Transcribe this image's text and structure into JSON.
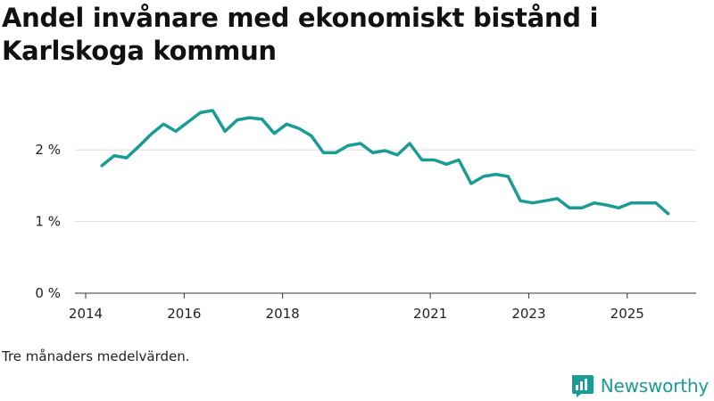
{
  "chart_data": {
    "type": "line",
    "title": "Andel invånare med ekonomiskt bistånd i Karlskoga kommun",
    "xlabel": "",
    "ylabel": "",
    "ylim": [
      0,
      2.6
    ],
    "yticks": [
      0,
      1,
      2
    ],
    "ytick_labels": [
      "0 %",
      "1 %",
      "2 %"
    ],
    "xlim": [
      2014.0,
      2026.4
    ],
    "xticks": [
      2014,
      2016,
      2018,
      2021,
      2023,
      2025
    ],
    "xtick_labels": [
      "2014",
      "2016",
      "2018",
      "2021",
      "2023",
      "2025"
    ],
    "grid": true,
    "series": [
      {
        "name": "Andel invånare med ekonomiskt bistånd",
        "color": "#1a9c95",
        "x": [
          2014.33,
          2014.58,
          2014.83,
          2015.08,
          2015.33,
          2015.58,
          2015.83,
          2016.08,
          2016.33,
          2016.58,
          2016.83,
          2017.08,
          2017.33,
          2017.58,
          2017.83,
          2018.08,
          2018.33,
          2018.58,
          2018.83,
          2019.08,
          2019.33,
          2019.58,
          2019.83,
          2020.08,
          2020.33,
          2020.58,
          2020.83,
          2021.08,
          2021.33,
          2021.58,
          2021.83,
          2022.08,
          2022.33,
          2022.58,
          2022.83,
          2023.08,
          2023.33,
          2023.58,
          2023.83,
          2024.08,
          2024.33,
          2024.58,
          2024.83,
          2025.08,
          2025.33,
          2025.58,
          2025.83
        ],
        "values": [
          1.78,
          1.92,
          1.89,
          2.05,
          2.22,
          2.36,
          2.26,
          2.39,
          2.52,
          2.55,
          2.26,
          2.42,
          2.45,
          2.43,
          2.23,
          2.36,
          2.3,
          2.2,
          1.96,
          1.96,
          2.06,
          2.09,
          1.96,
          1.99,
          1.93,
          2.09,
          1.86,
          1.86,
          1.8,
          1.86,
          1.53,
          1.63,
          1.66,
          1.63,
          1.29,
          1.26,
          1.29,
          1.32,
          1.19,
          1.19,
          1.26,
          1.23,
          1.19,
          1.26,
          1.26,
          1.26,
          1.11
        ]
      }
    ]
  },
  "caption": "Tre månaders medelvärden.",
  "brand": {
    "name": "Newsworthy",
    "icon": "newsworthy-logo-icon",
    "color": "#1a9c95"
  }
}
